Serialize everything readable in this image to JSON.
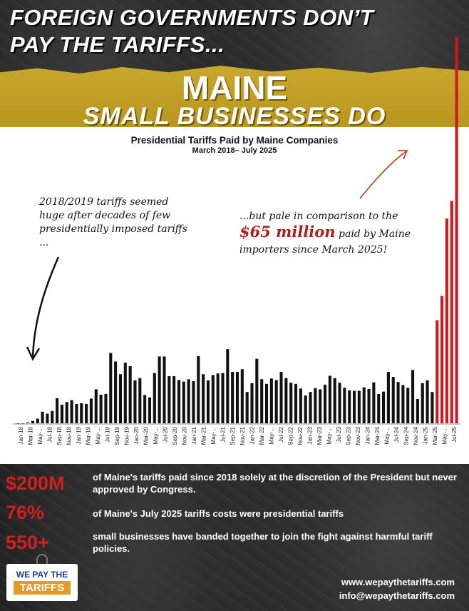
{
  "headline": {
    "line1": "FOREIGN GOVERNMENTS DON’T",
    "line2": "PAY THE TARIFFS..."
  },
  "banner": {
    "maine": "MAINE",
    "subtitle": "SMALL BUSINESSES DO"
  },
  "annotations": {
    "left": "2018/2019 tariffs seemed huge after decades of few presidentially imposed tariffs ...",
    "right_before": "...but pale in comparison to the",
    "right_big": "$65 million",
    "right_after": "paid by Maine importers since March 2025!"
  },
  "chart_data": {
    "type": "bar",
    "title": "Presidential Tariffs Paid by Maine Companies",
    "subtitle": "March 2018– July 2025",
    "tick_labels": [
      "Jan-18",
      "Mar-18",
      "May-...",
      "Jul-18",
      "Sep-18",
      "Nov-18",
      "Jan-19",
      "Mar-19",
      "May-...",
      "Jul-19",
      "Sep-19",
      "Nov-19",
      "Jan-20",
      "Mar-20",
      "May-...",
      "Jul-20",
      "Sep-20",
      "Nov-20",
      "Jan-21",
      "Mar-21",
      "May-...",
      "Jul-21",
      "Sep-21",
      "Nov-21",
      "Jan-22",
      "Mar-22",
      "May-...",
      "Jul-22",
      "Sep-22",
      "Nov-22",
      "Jan-23",
      "Mar-23",
      "May-...",
      "Jul-23",
      "Sep-23",
      "Nov-23",
      "Jan-24",
      "Mar-24",
      "May-...",
      "Jul-24",
      "Sep-24",
      "Nov-24",
      "Jan-25",
      "Mar-25",
      "May-...",
      "Jul-25"
    ],
    "ylim": [
      0,
      100
    ],
    "colors": {
      "normal": "#111111",
      "highlight": "#d0191f"
    },
    "values": [
      0,
      0,
      0.2,
      0.6,
      1.2,
      3,
      2.5,
      3.2,
      6.5,
      4.8,
      5.5,
      6,
      5,
      5.2,
      5,
      6.4,
      8.8,
      7.4,
      7.6,
      18.2,
      16,
      12.7,
      15.7,
      14.8,
      11.1,
      11.7,
      7.3,
      6.7,
      13,
      17.3,
      17.3,
      12.2,
      12.2,
      11.2,
      10.8,
      11.4,
      10.9,
      17.4,
      12.7,
      11.1,
      12.5,
      12.9,
      13,
      19.2,
      13.3,
      13.3,
      14,
      8.1,
      10.4,
      16.7,
      11.4,
      10.2,
      11.6,
      11.2,
      13.3,
      11.7,
      10.5,
      10.2,
      9,
      7.2,
      8.1,
      9.1,
      8.8,
      10,
      12.3,
      11.7,
      10.5,
      9.2,
      8.5,
      8.4,
      8.4,
      9.3,
      8.9,
      10.6,
      7.6,
      8.2,
      13.3,
      12,
      10.7,
      9.9,
      9.2,
      13.8,
      6.3,
      10.4,
      11.1,
      8.1,
      26.7,
      33,
      53,
      57.6,
      100
    ],
    "highlight_from_index": 86
  },
  "stats": [
    {
      "value": "$200M",
      "text": "of Maine's tariffs paid since 2018 solely at the discretion of the President but never approved by Congress."
    },
    {
      "value": "76%",
      "text": "of Maine's July 2025 tariffs costs were presidential tariffs"
    },
    {
      "value": "550+",
      "text": "small businesses have banded together to join the fight against harmful tariff policies."
    }
  ],
  "logo": {
    "top": "WE PAY THE",
    "bottom": "TARIFFS"
  },
  "contact": {
    "website": "www.wepaythetariffs.com",
    "email": "info@wepaythetariffs.com"
  }
}
